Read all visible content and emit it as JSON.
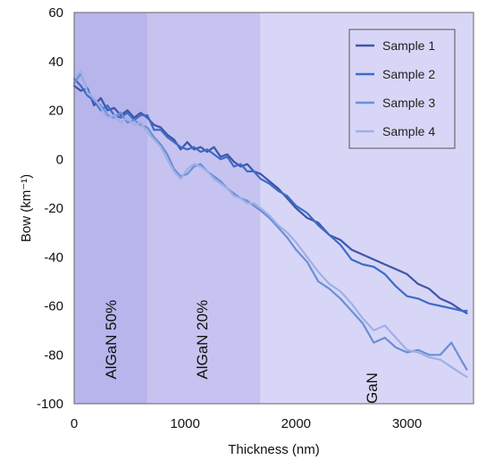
{
  "chart_data": {
    "type": "line",
    "title": "",
    "xlabel": "Thickness (nm)",
    "ylabel": "Bow (km⁻¹)",
    "xlim": [
      0,
      3600
    ],
    "ylim": [
      -100,
      60
    ],
    "xticks": [
      0,
      1000,
      2000,
      3000
    ],
    "yticks": [
      60,
      40,
      20,
      0,
      -20,
      -40,
      -60,
      -80,
      -100
    ],
    "legend_position": "top-right",
    "regions": [
      {
        "label": "AlGaN 50%",
        "x_start": 0,
        "x_end": 660,
        "color": "#b8b4ec"
      },
      {
        "label": "AlGaN 20%",
        "x_start": 660,
        "x_end": 1680,
        "color": "#c6c3f0"
      },
      {
        "label": "GaN",
        "x_start": 1680,
        "x_end": 3600,
        "color": "#d8d6f6"
      }
    ],
    "series": [
      {
        "name": "Sample 1",
        "color": "#3f55a8",
        "points": [
          [
            0,
            30
          ],
          [
            60,
            28
          ],
          [
            120,
            29
          ],
          [
            180,
            22
          ],
          [
            240,
            25
          ],
          [
            300,
            20
          ],
          [
            360,
            21
          ],
          [
            420,
            18
          ],
          [
            480,
            20
          ],
          [
            540,
            17
          ],
          [
            600,
            19
          ],
          [
            660,
            17
          ],
          [
            720,
            14
          ],
          [
            780,
            13
          ],
          [
            840,
            10
          ],
          [
            900,
            8
          ],
          [
            960,
            4
          ],
          [
            1020,
            7
          ],
          [
            1080,
            4
          ],
          [
            1140,
            5
          ],
          [
            1200,
            3
          ],
          [
            1260,
            5
          ],
          [
            1320,
            1
          ],
          [
            1380,
            2
          ],
          [
            1440,
            -1
          ],
          [
            1500,
            -3
          ],
          [
            1560,
            -2
          ],
          [
            1620,
            -5
          ],
          [
            1680,
            -6
          ],
          [
            1760,
            -9
          ],
          [
            1840,
            -12
          ],
          [
            1920,
            -16
          ],
          [
            2000,
            -20
          ],
          [
            2100,
            -24
          ],
          [
            2200,
            -26
          ],
          [
            2300,
            -31
          ],
          [
            2400,
            -33
          ],
          [
            2500,
            -37
          ],
          [
            2600,
            -39
          ],
          [
            2700,
            -41
          ],
          [
            2800,
            -43
          ],
          [
            2900,
            -45
          ],
          [
            3000,
            -47
          ],
          [
            3100,
            -51
          ],
          [
            3200,
            -53
          ],
          [
            3300,
            -57
          ],
          [
            3400,
            -59
          ],
          [
            3500,
            -62
          ],
          [
            3540,
            -63
          ]
        ]
      },
      {
        "name": "Sample 2",
        "color": "#3b6cc8",
        "points": [
          [
            0,
            33
          ],
          [
            60,
            30
          ],
          [
            120,
            26
          ],
          [
            180,
            24
          ],
          [
            240,
            20
          ],
          [
            300,
            22
          ],
          [
            360,
            18
          ],
          [
            420,
            17
          ],
          [
            480,
            19
          ],
          [
            540,
            16
          ],
          [
            600,
            18
          ],
          [
            660,
            18
          ],
          [
            720,
            12
          ],
          [
            780,
            12
          ],
          [
            840,
            9
          ],
          [
            900,
            7
          ],
          [
            960,
            5
          ],
          [
            1020,
            4
          ],
          [
            1080,
            5
          ],
          [
            1140,
            3
          ],
          [
            1200,
            4
          ],
          [
            1260,
            2
          ],
          [
            1320,
            0
          ],
          [
            1380,
            1
          ],
          [
            1440,
            -3
          ],
          [
            1500,
            -2
          ],
          [
            1560,
            -5
          ],
          [
            1620,
            -5
          ],
          [
            1680,
            -8
          ],
          [
            1760,
            -10
          ],
          [
            1840,
            -13
          ],
          [
            1920,
            -15
          ],
          [
            2000,
            -19
          ],
          [
            2100,
            -22
          ],
          [
            2200,
            -27
          ],
          [
            2300,
            -31
          ],
          [
            2400,
            -35
          ],
          [
            2500,
            -41
          ],
          [
            2600,
            -43
          ],
          [
            2700,
            -44
          ],
          [
            2800,
            -47
          ],
          [
            2900,
            -52
          ],
          [
            3000,
            -56
          ],
          [
            3100,
            -57
          ],
          [
            3200,
            -59
          ],
          [
            3300,
            -60
          ],
          [
            3400,
            -61
          ],
          [
            3500,
            -62
          ],
          [
            3540,
            -62
          ]
        ]
      },
      {
        "name": "Sample 3",
        "color": "#6a8fd8",
        "points": [
          [
            0,
            31
          ],
          [
            60,
            35
          ],
          [
            120,
            28
          ],
          [
            180,
            24
          ],
          [
            240,
            22
          ],
          [
            300,
            18
          ],
          [
            360,
            17
          ],
          [
            420,
            19
          ],
          [
            480,
            15
          ],
          [
            540,
            16
          ],
          [
            600,
            14
          ],
          [
            660,
            13
          ],
          [
            720,
            9
          ],
          [
            780,
            6
          ],
          [
            840,
            2
          ],
          [
            900,
            -4
          ],
          [
            960,
            -7
          ],
          [
            1020,
            -6
          ],
          [
            1080,
            -3
          ],
          [
            1140,
            -2
          ],
          [
            1200,
            -5
          ],
          [
            1260,
            -7
          ],
          [
            1320,
            -9
          ],
          [
            1380,
            -12
          ],
          [
            1440,
            -14
          ],
          [
            1500,
            -16
          ],
          [
            1560,
            -17
          ],
          [
            1620,
            -19
          ],
          [
            1680,
            -21
          ],
          [
            1760,
            -24
          ],
          [
            1840,
            -28
          ],
          [
            1920,
            -32
          ],
          [
            2000,
            -37
          ],
          [
            2100,
            -42
          ],
          [
            2200,
            -50
          ],
          [
            2300,
            -53
          ],
          [
            2400,
            -57
          ],
          [
            2500,
            -62
          ],
          [
            2600,
            -67
          ],
          [
            2700,
            -75
          ],
          [
            2800,
            -73
          ],
          [
            2900,
            -77
          ],
          [
            3000,
            -79
          ],
          [
            3100,
            -78
          ],
          [
            3200,
            -80
          ],
          [
            3300,
            -80
          ],
          [
            3400,
            -75
          ],
          [
            3500,
            -83
          ],
          [
            3540,
            -86
          ]
        ]
      },
      {
        "name": "Sample 4",
        "color": "#9fb0e6",
        "points": [
          [
            0,
            33
          ],
          [
            60,
            36
          ],
          [
            120,
            27
          ],
          [
            180,
            25
          ],
          [
            240,
            21
          ],
          [
            300,
            17
          ],
          [
            360,
            18
          ],
          [
            420,
            15
          ],
          [
            480,
            17
          ],
          [
            540,
            14
          ],
          [
            600,
            15
          ],
          [
            660,
            11
          ],
          [
            720,
            8
          ],
          [
            780,
            5
          ],
          [
            840,
            0
          ],
          [
            900,
            -5
          ],
          [
            960,
            -8
          ],
          [
            1020,
            -4
          ],
          [
            1080,
            -2
          ],
          [
            1140,
            -3
          ],
          [
            1200,
            -5
          ],
          [
            1260,
            -8
          ],
          [
            1320,
            -10
          ],
          [
            1380,
            -12
          ],
          [
            1440,
            -15
          ],
          [
            1500,
            -16
          ],
          [
            1560,
            -18
          ],
          [
            1620,
            -18
          ],
          [
            1680,
            -20
          ],
          [
            1760,
            -23
          ],
          [
            1840,
            -27
          ],
          [
            1920,
            -30
          ],
          [
            2000,
            -34
          ],
          [
            2100,
            -40
          ],
          [
            2200,
            -46
          ],
          [
            2300,
            -51
          ],
          [
            2400,
            -54
          ],
          [
            2500,
            -59
          ],
          [
            2600,
            -65
          ],
          [
            2700,
            -70
          ],
          [
            2800,
            -68
          ],
          [
            2900,
            -73
          ],
          [
            3000,
            -78
          ],
          [
            3100,
            -79
          ],
          [
            3200,
            -81
          ],
          [
            3300,
            -82
          ],
          [
            3400,
            -85
          ],
          [
            3500,
            -88
          ],
          [
            3540,
            -89
          ]
        ]
      }
    ]
  }
}
